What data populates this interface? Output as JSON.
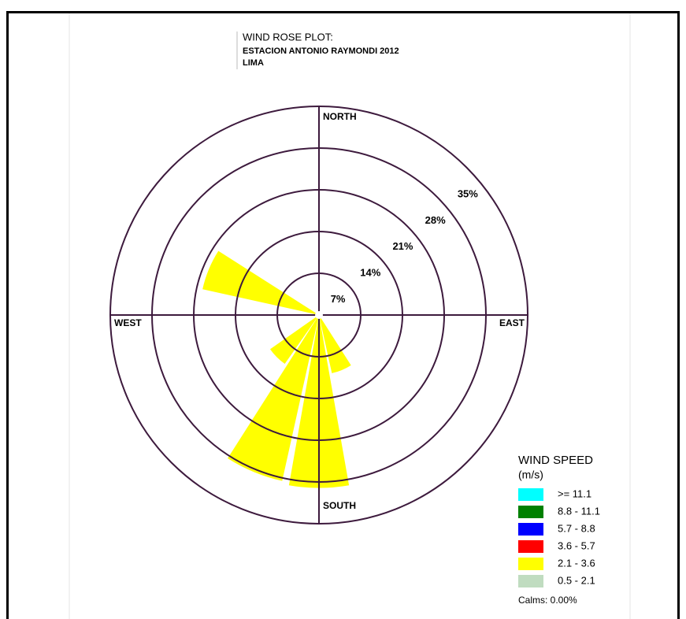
{
  "chart_data": {
    "type": "windrose",
    "title": "WIND ROSE PLOT:",
    "subtitle": "ESTACION ANTONIO RAYMONDI 2012",
    "location": "LIMA",
    "theta": [
      0,
      22.5,
      45,
      67.5,
      90,
      112.5,
      135,
      157.5,
      180,
      202.5,
      225,
      247.5,
      270,
      292.5,
      315,
      337.5
    ],
    "series": [
      {
        "name": ">= 11.1",
        "color": "#00ffff",
        "values": [
          0,
          0,
          0,
          0,
          0,
          0,
          0,
          0,
          0,
          0,
          0,
          0,
          0,
          0,
          0,
          0
        ]
      },
      {
        "name": "8.8 - 11.1",
        "color": "#008000",
        "values": [
          0,
          0,
          0,
          0,
          0,
          0,
          0,
          0,
          0,
          0,
          0,
          0,
          0,
          0,
          0,
          0
        ]
      },
      {
        "name": "5.7 - 8.8",
        "color": "#0000ff",
        "values": [
          0,
          0,
          0,
          0,
          0,
          0,
          0,
          0,
          0,
          0,
          0,
          0,
          0,
          0,
          0,
          0
        ]
      },
      {
        "name": "3.6 - 5.7",
        "color": "#ff0000",
        "values": [
          0,
          0,
          0,
          0,
          0,
          0,
          0,
          0,
          0,
          0,
          0,
          0,
          0,
          0,
          0,
          0
        ]
      },
      {
        "name": "2.1 - 3.6",
        "color": "#ffff00",
        "values": [
          0,
          0,
          0,
          0,
          0,
          0,
          0,
          10,
          29,
          28.5,
          10,
          0,
          0,
          20,
          0,
          0
        ]
      },
      {
        "name": "0.5 - 2.1",
        "color": "#c0dcc0",
        "values": [
          0,
          0,
          0,
          0,
          0,
          0,
          0,
          0,
          0,
          0,
          0,
          0,
          0,
          0,
          0,
          0
        ]
      }
    ],
    "rlim": [
      0,
      35
    ],
    "rticks": [
      {
        "value": 7,
        "label": "7%"
      },
      {
        "value": 14,
        "label": "14%"
      },
      {
        "value": 21,
        "label": "21%"
      },
      {
        "value": 28,
        "label": "28%"
      },
      {
        "value": 35,
        "label": "35%"
      }
    ],
    "compass": {
      "north": "NORTH",
      "east": "EAST",
      "south": "SOUTH",
      "west": "WEST"
    },
    "legend_title": "WIND SPEED",
    "legend_unit": "(m/s)",
    "calms": "Calms: 0.00%"
  }
}
